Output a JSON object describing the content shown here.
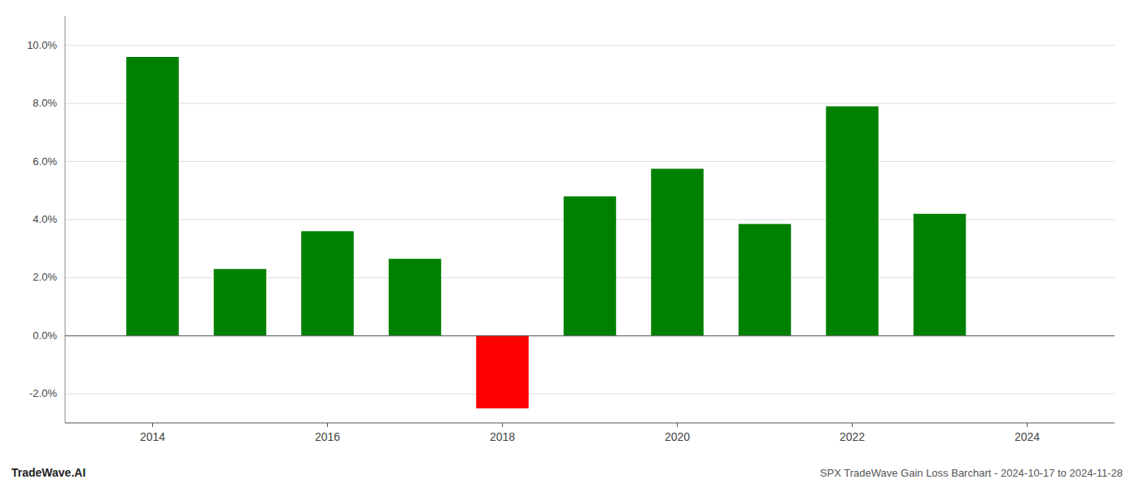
{
  "chart_data": {
    "type": "bar",
    "title": "SPX TradeWave Gain Loss Barchart - 2024-10-17 to 2024-11-28",
    "annotations": [
      "TradeWave.AI"
    ],
    "x": [
      2014,
      2015,
      2016,
      2017,
      2018,
      2019,
      2020,
      2021,
      2022,
      2023
    ],
    "values": [
      0.096,
      0.023,
      0.036,
      0.0265,
      -0.025,
      0.048,
      0.0575,
      0.0385,
      0.079,
      0.042
    ],
    "colors": [
      "#008000",
      "#008000",
      "#008000",
      "#008000",
      "#ff0000",
      "#008000",
      "#008000",
      "#008000",
      "#008000",
      "#008000"
    ],
    "ylim": [
      -0.03,
      0.11
    ],
    "yticks": [
      {
        "value": -0.02,
        "label": "-2.0%"
      },
      {
        "value": 0.0,
        "label": "0.0%"
      },
      {
        "value": 0.02,
        "label": "2.0%"
      },
      {
        "value": 0.04,
        "label": "4.0%"
      },
      {
        "value": 0.06,
        "label": "6.0%"
      },
      {
        "value": 0.08,
        "label": "8.0%"
      },
      {
        "value": 0.1,
        "label": "10.0%"
      }
    ],
    "xlim": [
      2013.0,
      2025.0
    ],
    "xticks": [
      2014,
      2016,
      2018,
      2020,
      2022,
      2024
    ],
    "grid": true
  }
}
